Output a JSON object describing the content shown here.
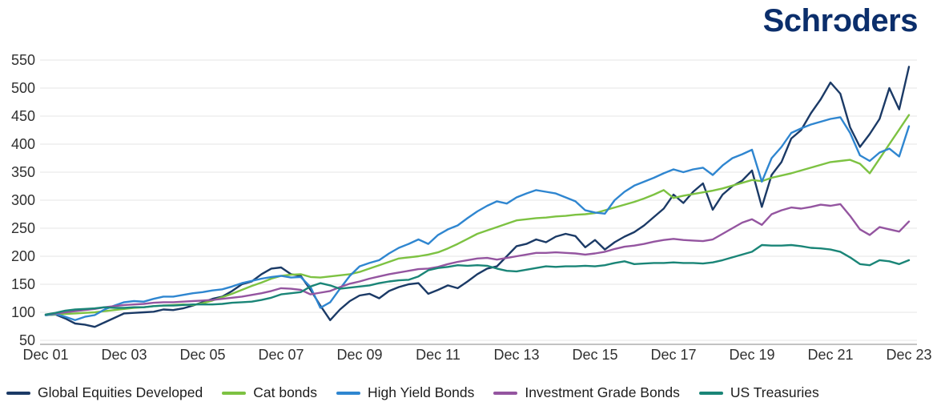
{
  "logo": {
    "pre": "Schr",
    "slashed_o": "o",
    "post": "ders",
    "color": "#0b2e6b"
  },
  "chart_data": {
    "type": "line",
    "title": "",
    "xlabel": "",
    "ylabel": "",
    "ylim": [
      50,
      550
    ],
    "y_ticks": [
      550,
      500,
      450,
      400,
      350,
      300,
      250,
      200,
      150,
      100,
      50
    ],
    "x_unit": "years since Dec 2001, quarterly points",
    "x_step": 0.25,
    "x_ticks": [
      {
        "t": 0,
        "label": "Dec 01"
      },
      {
        "t": 2,
        "label": "Dec 03"
      },
      {
        "t": 4,
        "label": "Dec 05"
      },
      {
        "t": 6,
        "label": "Dec 07"
      },
      {
        "t": 8,
        "label": "Dec 09"
      },
      {
        "t": 10,
        "label": "Dec 11"
      },
      {
        "t": 12,
        "label": "Dec 13"
      },
      {
        "t": 14,
        "label": "Dec 15"
      },
      {
        "t": 16,
        "label": "Dec 17"
      },
      {
        "t": 18,
        "label": "Dec 19"
      },
      {
        "t": 20,
        "label": "Dec 21"
      },
      {
        "t": 22,
        "label": "Dec 23"
      }
    ],
    "grid": "horizontal",
    "grid_color": "#e4e4e4",
    "axis_color": "#9e9e9e",
    "legend_position": "bottom",
    "series": [
      {
        "name": "Global Equities Developed",
        "color": "#1b3a66",
        "values": [
          95,
          96,
          89,
          80,
          78,
          74,
          82,
          90,
          98,
          99,
          100,
          101,
          105,
          104,
          107,
          112,
          118,
          124,
          128,
          138,
          150,
          155,
          168,
          178,
          180,
          168,
          165,
          140,
          112,
          86,
          105,
          120,
          130,
          133,
          125,
          138,
          145,
          150,
          152,
          133,
          140,
          148,
          143,
          155,
          168,
          178,
          182,
          200,
          218,
          222,
          230,
          225,
          235,
          240,
          236,
          216,
          229,
          212,
          225,
          235,
          243,
          255,
          270,
          285,
          310,
          295,
          315,
          330,
          283,
          310,
          325,
          335,
          353,
          288,
          345,
          368,
          410,
          425,
          455,
          480,
          510,
          490,
          430,
          395,
          418,
          445,
          500,
          462,
          538
        ]
      },
      {
        "name": "Cat bonds",
        "color": "#7dc242",
        "values": [
          95,
          96,
          97,
          98,
          99,
          100,
          102,
          104,
          106,
          108,
          109,
          111,
          112,
          113,
          114,
          113,
          116,
          121,
          127,
          133,
          140,
          147,
          153,
          160,
          165,
          167,
          168,
          163,
          162,
          164,
          166,
          168,
          172,
          178,
          184,
          190,
          196,
          198,
          200,
          203,
          207,
          214,
          222,
          231,
          240,
          246,
          252,
          258,
          264,
          266,
          268,
          269,
          271,
          272,
          274,
          275,
          277,
          282,
          287,
          292,
          297,
          303,
          310,
          318,
          304,
          308,
          311,
          314,
          317,
          321,
          326,
          331,
          336,
          334,
          340,
          344,
          348,
          353,
          358,
          363,
          368,
          370,
          372,
          365,
          348,
          374,
          400,
          426,
          452
        ]
      },
      {
        "name": "High Yield Bonds",
        "color": "#2f86d0",
        "values": [
          95,
          97,
          92,
          86,
          92,
          95,
          105,
          112,
          118,
          120,
          119,
          124,
          128,
          128,
          131,
          134,
          136,
          139,
          141,
          146,
          152,
          156,
          160,
          163,
          165,
          162,
          163,
          145,
          108,
          118,
          142,
          165,
          182,
          188,
          193,
          205,
          215,
          222,
          230,
          222,
          238,
          248,
          255,
          268,
          280,
          290,
          298,
          294,
          305,
          312,
          318,
          315,
          312,
          305,
          298,
          282,
          278,
          276,
          300,
          315,
          326,
          333,
          340,
          348,
          355,
          350,
          355,
          358,
          345,
          362,
          375,
          382,
          390,
          333,
          375,
          395,
          420,
          428,
          435,
          440,
          445,
          448,
          420,
          380,
          370,
          385,
          392,
          378,
          432
        ]
      },
      {
        "name": "Investment Grade Bonds",
        "color": "#9455a0",
        "values": [
          96,
          98,
          100,
          102,
          104,
          106,
          109,
          111,
          113,
          114,
          115,
          117,
          118,
          118,
          119,
          120,
          121,
          122,
          124,
          126,
          128,
          131,
          134,
          138,
          143,
          142,
          140,
          132,
          135,
          138,
          145,
          151,
          155,
          160,
          164,
          168,
          171,
          174,
          177,
          178,
          181,
          186,
          190,
          193,
          196,
          197,
          194,
          197,
          200,
          203,
          206,
          206,
          207,
          206,
          205,
          203,
          205,
          208,
          213,
          217,
          219,
          222,
          226,
          229,
          231,
          229,
          228,
          227,
          230,
          240,
          250,
          260,
          266,
          256,
          275,
          282,
          287,
          285,
          288,
          292,
          290,
          293,
          272,
          248,
          238,
          252,
          248,
          244,
          262
        ]
      },
      {
        "name": "US Treasuries",
        "color": "#1a8577",
        "values": [
          96,
          99,
          103,
          105,
          106,
          107,
          109,
          108,
          108,
          109,
          109,
          111,
          112,
          112,
          113,
          114,
          114,
          114,
          115,
          117,
          118,
          119,
          122,
          126,
          132,
          134,
          136,
          146,
          152,
          148,
          142,
          144,
          146,
          148,
          152,
          155,
          157,
          158,
          164,
          175,
          179,
          181,
          184,
          183,
          184,
          183,
          178,
          174,
          173,
          176,
          179,
          182,
          181,
          182,
          182,
          183,
          182,
          184,
          188,
          191,
          186,
          187,
          188,
          188,
          189,
          188,
          188,
          187,
          189,
          193,
          198,
          203,
          208,
          220,
          219,
          219,
          220,
          218,
          215,
          214,
          212,
          208,
          198,
          186,
          184,
          193,
          191,
          186,
          193
        ]
      }
    ]
  }
}
